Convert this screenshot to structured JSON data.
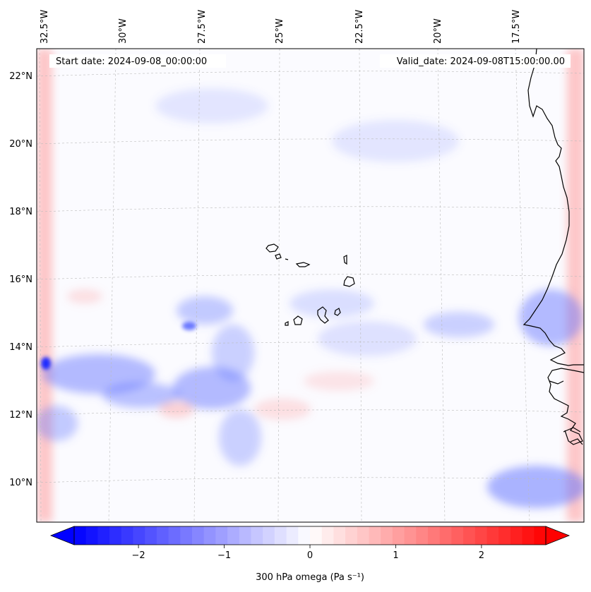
{
  "map": {
    "start_date_text": "Start date: 2024-09-08_00:00:00",
    "valid_date_text": "Valid_date: 2024-09-08T15:00:00.00",
    "lon_labels": [
      "32.5°W",
      "30°W",
      "27.5°W",
      "25°W",
      "22.5°W",
      "20°W",
      "17.5°W"
    ],
    "lat_labels": [
      "22°N",
      "20°N",
      "18°N",
      "16°N",
      "14°N",
      "12°N",
      "10°N"
    ],
    "colormap": {
      "negative": "#0000ff",
      "zero": "#ffffff",
      "positive": "#ff0000"
    },
    "coastline_color": "#000000",
    "gridlines": true
  },
  "colorbar": {
    "label_text": "300 hPa omega (Pa s⁻¹)",
    "range": [
      -2.75,
      2.75
    ],
    "ticks": [
      {
        "value": -2,
        "label": "−2"
      },
      {
        "value": -1,
        "label": "−1"
      },
      {
        "value": 0,
        "label": "0"
      },
      {
        "value": 1,
        "label": "1"
      },
      {
        "value": 2,
        "label": "2"
      }
    ],
    "extend": "both"
  }
}
